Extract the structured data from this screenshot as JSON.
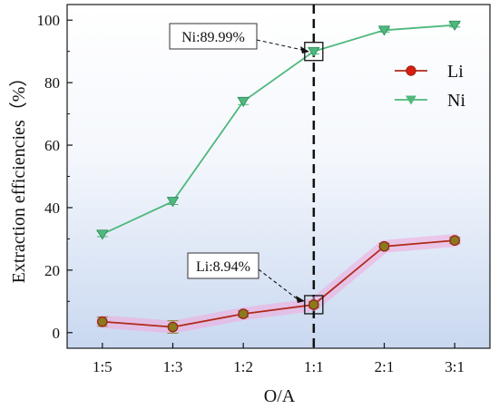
{
  "chart_data": {
    "type": "line",
    "title": "",
    "xlabel": "O/A",
    "ylabel": "Extraction efficiencies（%）",
    "categories": [
      "1:5",
      "1:3",
      "1:2",
      "1:1",
      "2:1",
      "3:1"
    ],
    "ylim": [
      -5,
      105
    ],
    "yticks": [
      0,
      20,
      40,
      60,
      80,
      100
    ],
    "grid": false,
    "legend_position": "right",
    "vertical_marker_category": "1:1",
    "series": [
      {
        "name": "Li",
        "marker": "circle",
        "color": "#b02a1a",
        "values": [
          3.5,
          1.8,
          6.0,
          8.94,
          27.6,
          29.5
        ],
        "errors": [
          1.5,
          2.0,
          1.0,
          1.0,
          1.0,
          1.0
        ]
      },
      {
        "name": "Ni",
        "marker": "triangle-down",
        "color": "#4fb87c",
        "values": [
          31.5,
          42.0,
          74.0,
          89.99,
          96.8,
          98.4
        ],
        "errors": [
          0.8,
          1.0,
          1.0,
          0.8,
          0.6,
          0.6
        ]
      }
    ],
    "annotations": [
      {
        "series": "Ni",
        "category": "1:1",
        "value": 89.99,
        "text": "Ni:89.99%"
      },
      {
        "series": "Li",
        "category": "1:1",
        "value": 8.94,
        "text": "Li:8.94%"
      }
    ]
  }
}
